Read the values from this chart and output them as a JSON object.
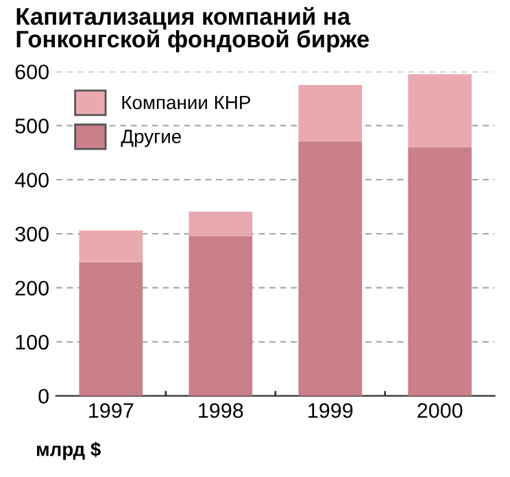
{
  "chart_data": {
    "type": "bar",
    "title": "Капитализация компаний на\nГонконгской фондовой бирже",
    "ylabel": "млрд $",
    "categories": [
      "1997",
      "1998",
      "1999",
      "2000"
    ],
    "stacked": true,
    "series": [
      {
        "name": "Другие",
        "color": "#c9808a",
        "values": [
          247,
          296,
          471,
          460
        ]
      },
      {
        "name": "Компании КНР",
        "color": "#e8aab0",
        "values": [
          59,
          45,
          104,
          135
        ]
      }
    ],
    "ylim": [
      0,
      600
    ],
    "yticks": [
      0,
      100,
      200,
      300,
      400,
      500,
      600
    ],
    "grid": "y",
    "legend": "top left"
  }
}
